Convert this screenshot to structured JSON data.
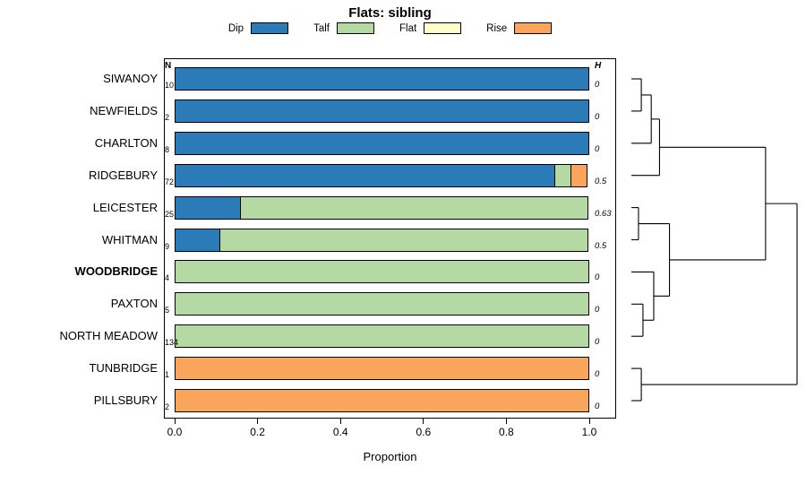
{
  "chart_data": {
    "type": "bar",
    "orientation": "horizontal",
    "stacked": true,
    "title": "Flats: sibling",
    "xlabel": "Proportion",
    "xlim": [
      0,
      1
    ],
    "x_ticks": [
      "0.0",
      "0.2",
      "0.4",
      "0.6",
      "0.8",
      "1.0"
    ],
    "grid": false,
    "legend_position": "top",
    "n_header": "N",
    "h_header": "H",
    "legend": [
      {
        "label": "Dip",
        "color": "#2b7bb9"
      },
      {
        "label": "Talf",
        "color": "#b5d9a3"
      },
      {
        "label": "Flat",
        "color": "#ffffcc"
      },
      {
        "label": "Rise",
        "color": "#f9a55b"
      }
    ],
    "rows": [
      {
        "label": "SIWANOY",
        "bold": false,
        "n": "10",
        "h": "0",
        "segments": [
          {
            "key": "Dip",
            "value": 1.0
          }
        ]
      },
      {
        "label": "NEWFIELDS",
        "bold": false,
        "n": "2",
        "h": "0",
        "segments": [
          {
            "key": "Dip",
            "value": 1.0
          }
        ]
      },
      {
        "label": "CHARLTON",
        "bold": false,
        "n": "8",
        "h": "0",
        "segments": [
          {
            "key": "Dip",
            "value": 1.0
          }
        ]
      },
      {
        "label": "RIDGEBURY",
        "bold": false,
        "n": "72",
        "h": "0.5",
        "segments": [
          {
            "key": "Dip",
            "value": 0.917
          },
          {
            "key": "Talf",
            "value": 0.042
          },
          {
            "key": "Rise",
            "value": 0.041
          }
        ]
      },
      {
        "label": "LEICESTER",
        "bold": false,
        "n": "25",
        "h": "0.63",
        "segments": [
          {
            "key": "Dip",
            "value": 0.16
          },
          {
            "key": "Talf",
            "value": 0.84
          }
        ]
      },
      {
        "label": "WHITMAN",
        "bold": false,
        "n": "9",
        "h": "0.5",
        "segments": [
          {
            "key": "Dip",
            "value": 0.111
          },
          {
            "key": "Talf",
            "value": 0.889
          }
        ]
      },
      {
        "label": "WOODBRIDGE",
        "bold": true,
        "n": "4",
        "h": "0",
        "segments": [
          {
            "key": "Talf",
            "value": 1.0
          }
        ]
      },
      {
        "label": "PAXTON",
        "bold": false,
        "n": "5",
        "h": "0",
        "segments": [
          {
            "key": "Talf",
            "value": 1.0
          }
        ]
      },
      {
        "label": "NORTH MEADOW",
        "bold": false,
        "n": "134",
        "h": "0",
        "segments": [
          {
            "key": "Talf",
            "value": 1.0
          }
        ]
      },
      {
        "label": "TUNBRIDGE",
        "bold": false,
        "n": "1",
        "h": "0",
        "segments": [
          {
            "key": "Rise",
            "value": 1.0
          }
        ]
      },
      {
        "label": "PILLSBURY",
        "bold": false,
        "n": "2",
        "h": "0",
        "segments": [
          {
            "key": "Rise",
            "value": 1.0
          }
        ]
      }
    ],
    "dendrogram": {
      "h": 1.0,
      "children": [
        {
          "h": 0.81,
          "children": [
            {
              "h": 0.17,
              "children": [
                {
                  "h": 0.12,
                  "children": [
                    {
                      "h": 0.06,
                      "children": [
                        {
                          "leaf": "SIWANOY"
                        },
                        {
                          "leaf": "NEWFIELDS"
                        }
                      ]
                    },
                    {
                      "leaf": "CHARLTON"
                    }
                  ]
                },
                {
                  "leaf": "RIDGEBURY"
                }
              ]
            },
            {
              "h": 0.23,
              "children": [
                {
                  "h": 0.043,
                  "children": [
                    {
                      "leaf": "LEICESTER"
                    },
                    {
                      "leaf": "WHITMAN"
                    }
                  ]
                },
                {
                  "h": 0.135,
                  "children": [
                    {
                      "leaf": "WOODBRIDGE"
                    },
                    {
                      "h": 0.07,
                      "children": [
                        {
                          "leaf": "PAXTON"
                        },
                        {
                          "leaf": "NORTH MEADOW"
                        }
                      ]
                    }
                  ]
                }
              ]
            }
          ]
        },
        {
          "h": 0.06,
          "children": [
            {
              "leaf": "TUNBRIDGE"
            },
            {
              "leaf": "PILLSBURY"
            }
          ]
        }
      ]
    }
  }
}
